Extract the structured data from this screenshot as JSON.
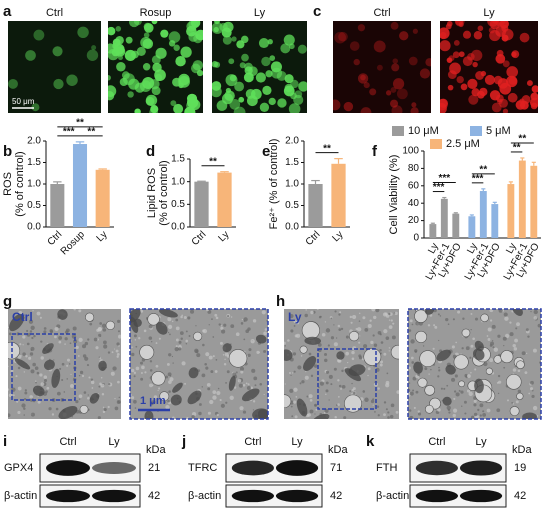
{
  "panel_labels": [
    "a",
    "b",
    "c",
    "d",
    "e",
    "f",
    "g",
    "h",
    "i",
    "j",
    "k"
  ],
  "fluorescence": {
    "a": {
      "labels": [
        "Ctrl",
        "Rosup",
        "Ly"
      ],
      "scale_bar": "50 μm"
    },
    "c": {
      "labels": [
        "Ctrl",
        "Ly"
      ]
    }
  },
  "chart_data": [
    {
      "type": "bar",
      "ylabel": [
        "ROS",
        "(% of control)"
      ],
      "categories": [
        "Ctrl",
        "Rosup",
        "Ly"
      ],
      "values": [
        1.0,
        1.93,
        1.33
      ],
      "errors": [
        0.05,
        0.05,
        0.02
      ],
      "colors": [
        "#9b9b9b",
        "#8db3e2",
        "#f7b579"
      ],
      "ylim": [
        0,
        2.0
      ],
      "yticks": [
        {
          "value": 0,
          "label": "0.0"
        },
        {
          "value": 0.5,
          "label": "0.5"
        },
        {
          "value": 1,
          "label": "1.0"
        },
        {
          "value": 1.5,
          "label": "1.5"
        },
        {
          "value": 2,
          "label": "2.0"
        }
      ],
      "significance": [
        {
          "between": [
            0,
            1
          ],
          "label": "***"
        },
        {
          "between": [
            1,
            2
          ],
          "label": "**"
        },
        {
          "between": [
            0,
            2
          ],
          "label": "**"
        }
      ]
    },
    {
      "type": "bar",
      "ylabel": [
        "Lipid ROS",
        "(% of control)"
      ],
      "categories": [
        "Ctrl",
        "Ly"
      ],
      "values": [
        1.0,
        1.2
      ],
      "errors": [
        0.01,
        0.02
      ],
      "colors": [
        "#9b9b9b",
        "#f7b579"
      ],
      "ylim": [
        0,
        1.5
      ],
      "yticks": [
        {
          "value": 0,
          "label": "0.0"
        },
        {
          "value": 0.5,
          "label": "0.5"
        },
        {
          "value": 1,
          "label": "1.0"
        },
        {
          "value": 1.5,
          "label": "1.5"
        }
      ],
      "significance": [
        {
          "between": [
            0,
            1
          ],
          "label": "**"
        }
      ]
    },
    {
      "type": "bar",
      "ylabel": [
        "Fe²⁺ (% of control)"
      ],
      "categories": [
        "Ctrl",
        "Ly"
      ],
      "values": [
        1.0,
        1.47
      ],
      "errors": [
        0.08,
        0.12
      ],
      "colors": [
        "#9b9b9b",
        "#f7b579"
      ],
      "ylim": [
        0,
        2.0
      ],
      "yticks": [
        {
          "value": 0,
          "label": "0.0"
        },
        {
          "value": 0.5,
          "label": "0.5"
        },
        {
          "value": 1,
          "label": "1.0"
        },
        {
          "value": 1.5,
          "label": "1.5"
        },
        {
          "value": 2,
          "label": "2.0"
        }
      ],
      "significance": [
        {
          "between": [
            0,
            1
          ],
          "label": "**"
        }
      ]
    },
    {
      "type": "grouped_bar",
      "ylabel": [
        "Cell Viability (%)"
      ],
      "categories": [
        "Ly",
        "Ly+Fer-1",
        "Ly+DFO"
      ],
      "ylim": [
        0,
        100
      ],
      "yticks": [
        0,
        20,
        40,
        60,
        80,
        100
      ],
      "series": [
        {
          "name": "10 μM",
          "color": "#9b9b9b",
          "values": [
            16,
            45,
            28
          ],
          "errors": [
            1,
            1.5,
            1
          ],
          "significance": [
            {
              "between": [
                0,
                1
              ],
              "label": "***"
            },
            {
              "between": [
                0,
                2
              ],
              "label": "***"
            }
          ]
        },
        {
          "name": "5 μM",
          "color": "#8db3e2",
          "values": [
            25,
            54,
            39
          ],
          "errors": [
            1.5,
            2.5,
            2
          ],
          "significance": [
            {
              "between": [
                0,
                1
              ],
              "label": "***"
            },
            {
              "between": [
                0,
                2
              ],
              "label": "**"
            }
          ]
        },
        {
          "name": "2.5 μM",
          "color": "#f7b579",
          "values": [
            62,
            89,
            83
          ],
          "errors": [
            2.5,
            3,
            4
          ],
          "significance": [
            {
              "between": [
                0,
                1
              ],
              "label": "**"
            },
            {
              "between": [
                0,
                2
              ],
              "label": "**"
            }
          ]
        }
      ]
    }
  ],
  "tem": {
    "g": {
      "label": "Ctrl",
      "scale_bar": "1 μm"
    },
    "h": {
      "label": "Ly"
    }
  },
  "blots": [
    {
      "lanes": [
        "Ctrl",
        "Ly"
      ],
      "unit": "kDa",
      "target": "GPX4",
      "target_kda": 21,
      "control": "β-actin",
      "control_kda": 42
    },
    {
      "lanes": [
        "Ctrl",
        "Ly"
      ],
      "unit": "kDa",
      "target": "TFRC",
      "target_kda": 71,
      "control": "β-actin",
      "control_kda": 42
    },
    {
      "lanes": [
        "Ctrl",
        "Ly"
      ],
      "unit": "kDa",
      "target": "FTH",
      "target_kda": 19,
      "control": "β-actin",
      "control_kda": 42
    }
  ]
}
